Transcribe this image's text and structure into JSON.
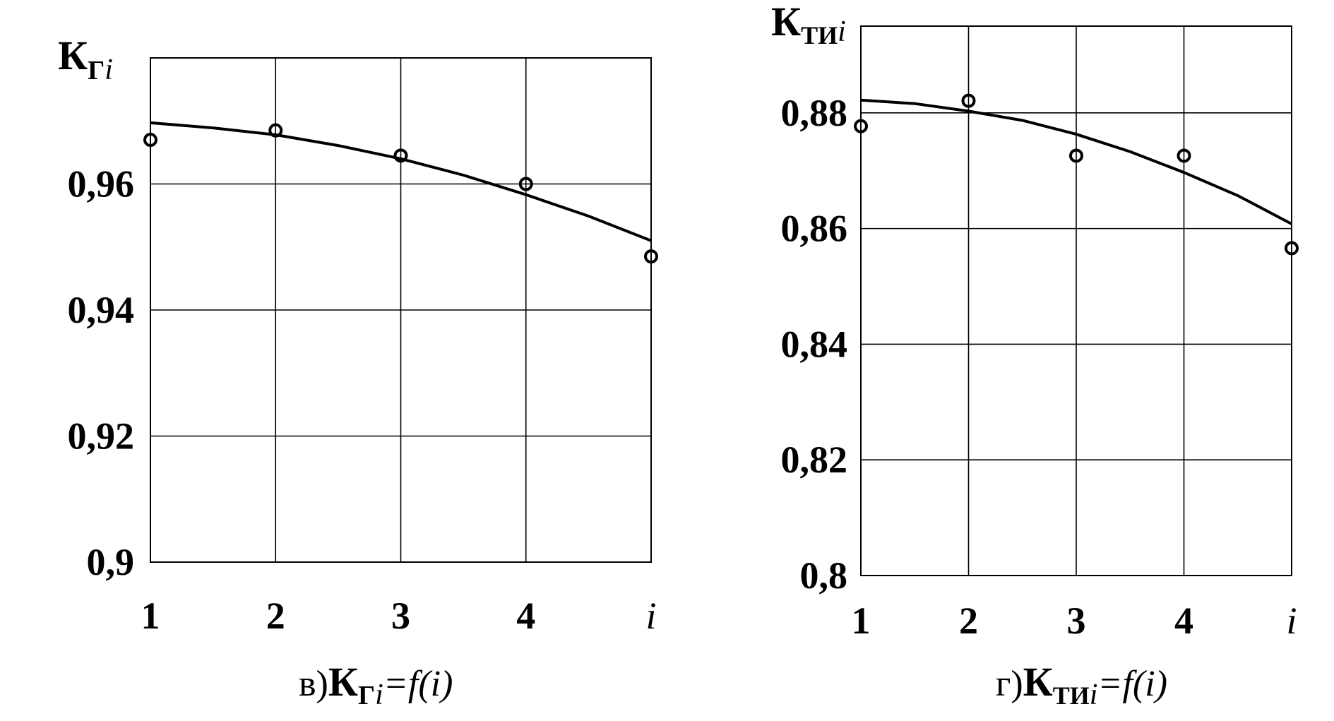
{
  "chart_data": [
    {
      "type": "scatter",
      "ylabel_main": "К",
      "ylabel_sub": "Г",
      "ylabel_idx": "i",
      "x_ticks": [
        "1",
        "2",
        "3",
        "4",
        "i"
      ],
      "y_ticks": [
        "0,9",
        "0,92",
        "0,94",
        "0,96"
      ],
      "xlim": [
        1,
        5
      ],
      "ylim": [
        0.9,
        0.98
      ],
      "grid": true,
      "series": [
        {
          "kind": "points",
          "x": [
            1,
            2,
            3,
            4,
            5
          ],
          "y": [
            0.967,
            0.9685,
            0.9645,
            0.96,
            0.9485
          ]
        },
        {
          "kind": "fit-line",
          "x": [
            1,
            1.5,
            2,
            2.5,
            3,
            3.5,
            4,
            4.5,
            5
          ],
          "y": [
            0.9697,
            0.9689,
            0.9678,
            0.9661,
            0.964,
            0.9614,
            0.9583,
            0.9549,
            0.951
          ]
        }
      ],
      "caption": {
        "prefix": "в)",
        "main": "К",
        "sub": "Г",
        "idx": "i",
        "rest": "=f(i)"
      }
    },
    {
      "type": "scatter",
      "ylabel_main": "К",
      "ylabel_sub": "ТИ",
      "ylabel_idx": "i",
      "x_ticks": [
        "1",
        "2",
        "3",
        "4",
        "i"
      ],
      "y_ticks": [
        "0,8",
        "0,82",
        "0,84",
        "0,86",
        "0,88"
      ],
      "xlim": [
        1,
        5
      ],
      "ylim": [
        0.8,
        0.895
      ],
      "grid": true,
      "series": [
        {
          "kind": "points",
          "x": [
            1,
            2,
            3,
            4,
            5
          ],
          "y": [
            0.8777,
            0.8821,
            0.8726,
            0.8726,
            0.8566
          ]
        },
        {
          "kind": "fit-line",
          "x": [
            1,
            1.5,
            2,
            2.5,
            3,
            3.5,
            4,
            4.5,
            5
          ],
          "y": [
            0.8822,
            0.8816,
            0.8803,
            0.8787,
            0.8763,
            0.8733,
            0.8697,
            0.8657,
            0.8608
          ]
        }
      ],
      "caption": {
        "prefix": "г)",
        "main": "К",
        "sub": "ТИ",
        "idx": "i",
        "rest": "=f(i)"
      }
    }
  ]
}
